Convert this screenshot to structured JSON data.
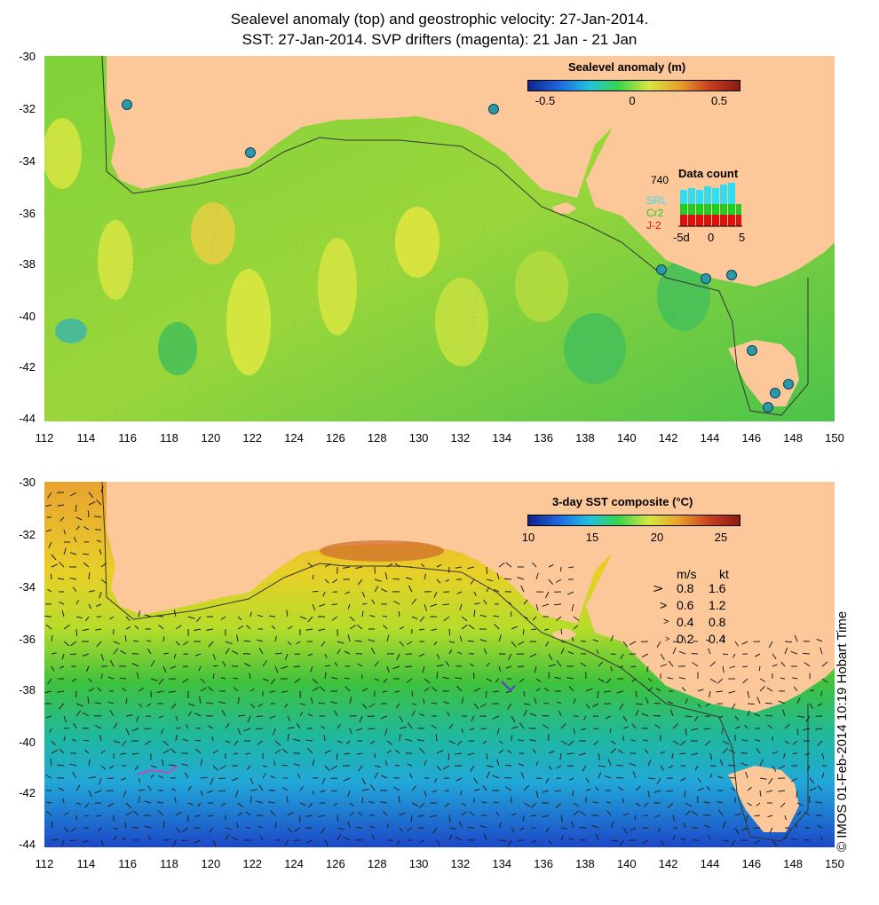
{
  "title_line1": "Sealevel anomaly (top) and geostrophic velocity: 27-Jan-2014.",
  "title_line2": "SST: 27-Jan-2014. SVP drifters (magenta): 21 Jan - 21 Jan",
  "y_ticks": [
    "-30",
    "-32",
    "-34",
    "-36",
    "-38",
    "-40",
    "-42",
    "-44"
  ],
  "x_ticks": [
    "112",
    "114",
    "116",
    "118",
    "120",
    "122",
    "124",
    "126",
    "128",
    "130",
    "132",
    "134",
    "136",
    "138",
    "140",
    "142",
    "144",
    "146",
    "148",
    "150"
  ],
  "top_panel": {
    "colorbar_title": "Sealevel anomaly (m)",
    "colorbar_ticks": [
      "-0.5",
      "0",
      "0.5"
    ],
    "colorbar_range": [
      -0.6,
      0.6
    ],
    "data_count": {
      "title": "Data count",
      "max_label": "740",
      "series": [
        "SRL",
        "Cr2",
        "J-2"
      ],
      "series_colors": [
        "#33ddee",
        "#22cc22",
        "#dd1111"
      ],
      "x_labels": [
        "-5d",
        "0",
        "5"
      ]
    }
  },
  "bottom_panel": {
    "colorbar_title": "3-day SST composite (°C)",
    "colorbar_ticks": [
      "10",
      "15",
      "20",
      "25"
    ],
    "colorbar_range": [
      10,
      26.5
    ],
    "velocity_key": {
      "header_ms": "m/s",
      "header_kt": "kt",
      "rows": [
        {
          "ms": "0.8",
          "kt": "1.6"
        },
        {
          "ms": "0.6",
          "kt": "1.2"
        },
        {
          "ms": "0.4",
          "kt": "0.8"
        },
        {
          "ms": "0.2",
          "kt": "0.4"
        }
      ]
    }
  },
  "watermark": "© IMOS 01-Feb-2014 10:19 Hobart Time",
  "colors": {
    "land": "#fcc899",
    "ocean_mid": "#55c83a",
    "cold": "#1a5bd6",
    "warm": "#e8b22a"
  }
}
